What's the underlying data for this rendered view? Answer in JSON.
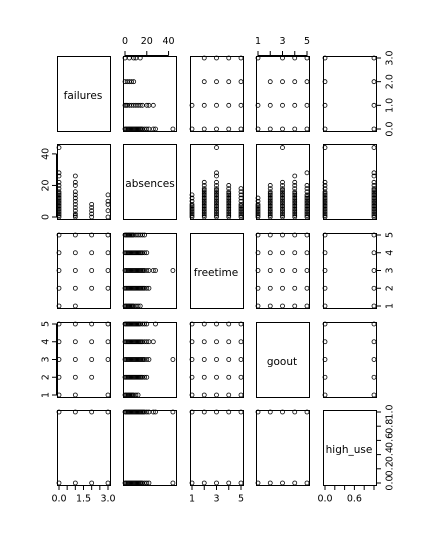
{
  "chart_data": {
    "type": "scatter-matrix",
    "variables": [
      "failures",
      "absences",
      "freetime",
      "goout",
      "high_use"
    ],
    "ranges": {
      "failures": [
        0,
        3
      ],
      "absences": [
        0,
        45
      ],
      "freetime": [
        1,
        5
      ],
      "goout": [
        1,
        5
      ],
      "high_use": [
        0,
        1
      ]
    },
    "ticks": {
      "failures": {
        "values": [
          0,
          1,
          2,
          3
        ],
        "labels": [
          "0.0",
          "1.0",
          "2.0",
          "3.0"
        ]
      },
      "failures_bottom": {
        "values": [
          0,
          0.5,
          1,
          1.5,
          2,
          2.5,
          3
        ],
        "labels": [
          "0.0",
          "",
          "",
          "1.5",
          "",
          "",
          "3.0"
        ]
      },
      "absences": {
        "values": [
          0,
          20,
          40
        ],
        "labels": [
          "0",
          "20",
          "40"
        ]
      },
      "freetime": {
        "values": [
          1,
          2,
          3,
          4,
          5
        ],
        "labels": [
          "1",
          "",
          "3",
          "",
          "5"
        ]
      },
      "freetime_right": {
        "values": [
          1,
          2,
          3,
          4,
          5
        ],
        "labels": [
          "1",
          "2",
          "3",
          "4",
          "5"
        ]
      },
      "goout": {
        "values": [
          1,
          2,
          3,
          4,
          5
        ],
        "labels": [
          "1",
          "",
          "3",
          "",
          "5"
        ]
      },
      "goout_left": {
        "values": [
          1,
          2,
          3,
          4,
          5
        ],
        "labels": [
          "1",
          "2",
          "3",
          "4",
          "5"
        ]
      },
      "high_use": {
        "values": [
          0,
          0.2,
          0.4,
          0.6,
          0.8,
          1
        ],
        "labels": [
          "0.0",
          "0.2",
          "0.4",
          "0.6",
          "0.8",
          "1.0"
        ]
      },
      "high_use_bottom": {
        "values": [
          0,
          0.2,
          0.4,
          0.6,
          0.8,
          1
        ],
        "labels": [
          "0.0",
          "",
          "",
          "0.6",
          "",
          ""
        ]
      }
    },
    "pairs": {
      "failures_absences": [
        [
          0,
          0
        ],
        [
          0,
          1
        ],
        [
          0,
          2
        ],
        [
          0,
          3
        ],
        [
          0,
          4
        ],
        [
          0,
          5
        ],
        [
          0,
          6
        ],
        [
          0,
          7
        ],
        [
          0,
          8
        ],
        [
          0,
          9
        ],
        [
          0,
          10
        ],
        [
          0,
          11
        ],
        [
          0,
          12
        ],
        [
          0,
          13
        ],
        [
          0,
          14
        ],
        [
          0,
          15
        ],
        [
          0,
          16
        ],
        [
          0,
          18
        ],
        [
          0,
          20
        ],
        [
          0,
          22
        ],
        [
          0,
          26
        ],
        [
          0,
          28
        ],
        [
          0,
          44
        ],
        [
          1,
          0
        ],
        [
          1,
          1
        ],
        [
          1,
          2
        ],
        [
          1,
          4
        ],
        [
          1,
          6
        ],
        [
          1,
          8
        ],
        [
          1,
          10
        ],
        [
          1,
          12
        ],
        [
          1,
          14
        ],
        [
          1,
          16
        ],
        [
          1,
          20
        ],
        [
          1,
          22
        ],
        [
          1,
          26
        ],
        [
          2,
          0
        ],
        [
          2,
          2
        ],
        [
          2,
          4
        ],
        [
          2,
          6
        ],
        [
          2,
          8
        ],
        [
          3,
          0
        ],
        [
          3,
          4
        ],
        [
          3,
          8
        ],
        [
          3,
          10
        ],
        [
          3,
          14
        ]
      ],
      "failures_freetime": [
        [
          0,
          1
        ],
        [
          0,
          2
        ],
        [
          0,
          3
        ],
        [
          0,
          4
        ],
        [
          0,
          5
        ],
        [
          1,
          1
        ],
        [
          1,
          2
        ],
        [
          1,
          3
        ],
        [
          1,
          4
        ],
        [
          1,
          5
        ],
        [
          2,
          2
        ],
        [
          2,
          3
        ],
        [
          2,
          4
        ],
        [
          2,
          5
        ],
        [
          3,
          2
        ],
        [
          3,
          3
        ],
        [
          3,
          4
        ],
        [
          3,
          5
        ]
      ],
      "failures_goout": [
        [
          0,
          1
        ],
        [
          0,
          2
        ],
        [
          0,
          3
        ],
        [
          0,
          4
        ],
        [
          0,
          5
        ],
        [
          1,
          1
        ],
        [
          1,
          2
        ],
        [
          1,
          3
        ],
        [
          1,
          4
        ],
        [
          1,
          5
        ],
        [
          2,
          2
        ],
        [
          2,
          3
        ],
        [
          2,
          4
        ],
        [
          2,
          5
        ],
        [
          3,
          1
        ],
        [
          3,
          3
        ],
        [
          3,
          4
        ],
        [
          3,
          5
        ]
      ],
      "failures_high_use": [
        [
          0,
          0
        ],
        [
          0,
          1
        ],
        [
          1,
          0
        ],
        [
          1,
          1
        ],
        [
          2,
          0
        ],
        [
          2,
          1
        ],
        [
          3,
          0
        ],
        [
          3,
          1
        ]
      ],
      "absences_freetime": [
        [
          0,
          1
        ],
        [
          1,
          1
        ],
        [
          2,
          1
        ],
        [
          3,
          1
        ],
        [
          4,
          1
        ],
        [
          5,
          1
        ],
        [
          6,
          1
        ],
        [
          7,
          1
        ],
        [
          8,
          1
        ],
        [
          10,
          1
        ],
        [
          12,
          1
        ],
        [
          14,
          1
        ],
        [
          0,
          2
        ],
        [
          1,
          2
        ],
        [
          2,
          2
        ],
        [
          3,
          2
        ],
        [
          4,
          2
        ],
        [
          5,
          2
        ],
        [
          6,
          2
        ],
        [
          7,
          2
        ],
        [
          8,
          2
        ],
        [
          9,
          2
        ],
        [
          10,
          2
        ],
        [
          11,
          2
        ],
        [
          12,
          2
        ],
        [
          13,
          2
        ],
        [
          14,
          2
        ],
        [
          15,
          2
        ],
        [
          16,
          2
        ],
        [
          17,
          2
        ],
        [
          18,
          2
        ],
        [
          20,
          2
        ],
        [
          22,
          2
        ],
        [
          0,
          3
        ],
        [
          1,
          3
        ],
        [
          2,
          3
        ],
        [
          3,
          3
        ],
        [
          4,
          3
        ],
        [
          5,
          3
        ],
        [
          6,
          3
        ],
        [
          7,
          3
        ],
        [
          8,
          3
        ],
        [
          9,
          3
        ],
        [
          10,
          3
        ],
        [
          11,
          3
        ],
        [
          12,
          3
        ],
        [
          13,
          3
        ],
        [
          14,
          3
        ],
        [
          15,
          3
        ],
        [
          16,
          3
        ],
        [
          17,
          3
        ],
        [
          18,
          3
        ],
        [
          20,
          3
        ],
        [
          22,
          3
        ],
        [
          26,
          3
        ],
        [
          28,
          3
        ],
        [
          44,
          3
        ],
        [
          0,
          4
        ],
        [
          1,
          4
        ],
        [
          2,
          4
        ],
        [
          3,
          4
        ],
        [
          4,
          4
        ],
        [
          5,
          4
        ],
        [
          6,
          4
        ],
        [
          7,
          4
        ],
        [
          8,
          4
        ],
        [
          9,
          4
        ],
        [
          10,
          4
        ],
        [
          11,
          4
        ],
        [
          12,
          4
        ],
        [
          13,
          4
        ],
        [
          14,
          4
        ],
        [
          15,
          4
        ],
        [
          16,
          4
        ],
        [
          18,
          4
        ],
        [
          20,
          4
        ],
        [
          0,
          5
        ],
        [
          1,
          5
        ],
        [
          2,
          5
        ],
        [
          3,
          5
        ],
        [
          4,
          5
        ],
        [
          5,
          5
        ],
        [
          6,
          5
        ],
        [
          7,
          5
        ],
        [
          8,
          5
        ],
        [
          10,
          5
        ],
        [
          12,
          5
        ],
        [
          14,
          5
        ],
        [
          16,
          5
        ],
        [
          18,
          5
        ]
      ],
      "absences_goout": [
        [
          0,
          1
        ],
        [
          1,
          1
        ],
        [
          2,
          1
        ],
        [
          3,
          1
        ],
        [
          4,
          1
        ],
        [
          5,
          1
        ],
        [
          6,
          1
        ],
        [
          7,
          1
        ],
        [
          8,
          1
        ],
        [
          10,
          1
        ],
        [
          12,
          1
        ],
        [
          0,
          2
        ],
        [
          1,
          2
        ],
        [
          2,
          2
        ],
        [
          3,
          2
        ],
        [
          4,
          2
        ],
        [
          5,
          2
        ],
        [
          6,
          2
        ],
        [
          7,
          2
        ],
        [
          8,
          2
        ],
        [
          9,
          2
        ],
        [
          10,
          2
        ],
        [
          11,
          2
        ],
        [
          12,
          2
        ],
        [
          13,
          2
        ],
        [
          14,
          2
        ],
        [
          15,
          2
        ],
        [
          16,
          2
        ],
        [
          18,
          2
        ],
        [
          20,
          2
        ],
        [
          0,
          3
        ],
        [
          1,
          3
        ],
        [
          2,
          3
        ],
        [
          3,
          3
        ],
        [
          4,
          3
        ],
        [
          5,
          3
        ],
        [
          6,
          3
        ],
        [
          7,
          3
        ],
        [
          8,
          3
        ],
        [
          9,
          3
        ],
        [
          10,
          3
        ],
        [
          11,
          3
        ],
        [
          12,
          3
        ],
        [
          13,
          3
        ],
        [
          14,
          3
        ],
        [
          15,
          3
        ],
        [
          16,
          3
        ],
        [
          17,
          3
        ],
        [
          18,
          3
        ],
        [
          20,
          3
        ],
        [
          22,
          3
        ],
        [
          44,
          3
        ],
        [
          0,
          4
        ],
        [
          1,
          4
        ],
        [
          2,
          4
        ],
        [
          3,
          4
        ],
        [
          4,
          4
        ],
        [
          5,
          4
        ],
        [
          6,
          4
        ],
        [
          7,
          4
        ],
        [
          8,
          4
        ],
        [
          9,
          4
        ],
        [
          10,
          4
        ],
        [
          11,
          4
        ],
        [
          12,
          4
        ],
        [
          13,
          4
        ],
        [
          14,
          4
        ],
        [
          15,
          4
        ],
        [
          16,
          4
        ],
        [
          18,
          4
        ],
        [
          20,
          4
        ],
        [
          22,
          4
        ],
        [
          26,
          4
        ],
        [
          0,
          5
        ],
        [
          1,
          5
        ],
        [
          2,
          5
        ],
        [
          3,
          5
        ],
        [
          4,
          5
        ],
        [
          5,
          5
        ],
        [
          6,
          5
        ],
        [
          7,
          5
        ],
        [
          8,
          5
        ],
        [
          9,
          5
        ],
        [
          10,
          5
        ],
        [
          11,
          5
        ],
        [
          12,
          5
        ],
        [
          13,
          5
        ],
        [
          14,
          5
        ],
        [
          16,
          5
        ],
        [
          18,
          5
        ],
        [
          20,
          5
        ],
        [
          28,
          5
        ]
      ],
      "absences_high_use": [
        [
          0,
          0
        ],
        [
          1,
          0
        ],
        [
          2,
          0
        ],
        [
          3,
          0
        ],
        [
          4,
          0
        ],
        [
          5,
          0
        ],
        [
          6,
          0
        ],
        [
          7,
          0
        ],
        [
          8,
          0
        ],
        [
          9,
          0
        ],
        [
          10,
          0
        ],
        [
          11,
          0
        ],
        [
          12,
          0
        ],
        [
          13,
          0
        ],
        [
          14,
          0
        ],
        [
          15,
          0
        ],
        [
          16,
          0
        ],
        [
          18,
          0
        ],
        [
          20,
          0
        ],
        [
          22,
          0
        ],
        [
          44,
          0
        ],
        [
          0,
          1
        ],
        [
          1,
          1
        ],
        [
          2,
          1
        ],
        [
          3,
          1
        ],
        [
          4,
          1
        ],
        [
          5,
          1
        ],
        [
          6,
          1
        ],
        [
          7,
          1
        ],
        [
          8,
          1
        ],
        [
          9,
          1
        ],
        [
          10,
          1
        ],
        [
          11,
          1
        ],
        [
          12,
          1
        ],
        [
          13,
          1
        ],
        [
          14,
          1
        ],
        [
          15,
          1
        ],
        [
          16,
          1
        ],
        [
          17,
          1
        ],
        [
          18,
          1
        ],
        [
          20,
          1
        ],
        [
          22,
          1
        ],
        [
          26,
          1
        ],
        [
          28,
          1
        ],
        [
          44,
          1
        ]
      ],
      "freetime_goout": [
        [
          1,
          1
        ],
        [
          2,
          1
        ],
        [
          3,
          1
        ],
        [
          4,
          1
        ],
        [
          5,
          1
        ],
        [
          1,
          2
        ],
        [
          2,
          2
        ],
        [
          3,
          2
        ],
        [
          4,
          2
        ],
        [
          5,
          2
        ],
        [
          1,
          3
        ],
        [
          2,
          3
        ],
        [
          3,
          3
        ],
        [
          4,
          3
        ],
        [
          5,
          3
        ],
        [
          1,
          4
        ],
        [
          2,
          4
        ],
        [
          3,
          4
        ],
        [
          4,
          4
        ],
        [
          5,
          4
        ],
        [
          1,
          5
        ],
        [
          2,
          5
        ],
        [
          3,
          5
        ],
        [
          4,
          5
        ],
        [
          5,
          5
        ]
      ],
      "freetime_high_use": [
        [
          1,
          0
        ],
        [
          2,
          0
        ],
        [
          3,
          0
        ],
        [
          4,
          0
        ],
        [
          5,
          0
        ],
        [
          1,
          1
        ],
        [
          2,
          1
        ],
        [
          3,
          1
        ],
        [
          4,
          1
        ],
        [
          5,
          1
        ]
      ],
      "goout_high_use": [
        [
          1,
          0
        ],
        [
          2,
          0
        ],
        [
          3,
          0
        ],
        [
          4,
          0
        ],
        [
          5,
          0
        ],
        [
          1,
          1
        ],
        [
          2,
          1
        ],
        [
          3,
          1
        ],
        [
          4,
          1
        ],
        [
          5,
          1
        ]
      ]
    }
  }
}
